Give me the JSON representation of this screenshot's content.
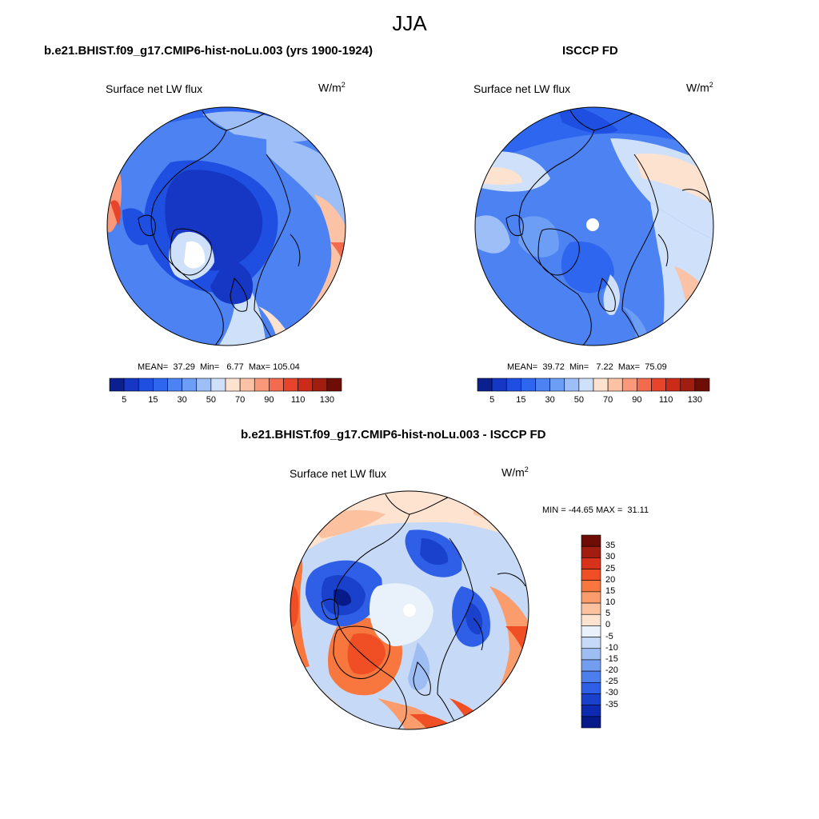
{
  "figure": {
    "title": "JJA"
  },
  "panels": [
    {
      "title": "b.e21.BHIST.f09_g17.CMIP6-hist-noLu.003 (yrs 1900-1924)",
      "variable": "Surface net LW flux",
      "units": "W/m",
      "units_sup": "2",
      "stats": {
        "mean_label": "MEAN=",
        "mean": "37.29",
        "min_label": "Min=",
        "min": "6.77",
        "max_label": "Max=",
        "max": "105.04"
      },
      "colorbar": {
        "colors": [
          "#0b1f8f",
          "#1636c4",
          "#1f4fe0",
          "#2f66f0",
          "#4c82f2",
          "#6d9ef5",
          "#9dbef7",
          "#cfe0fa",
          "#fde2cf",
          "#fcc2a5",
          "#f9997a",
          "#f36b4f",
          "#e8442c",
          "#cc2b19",
          "#a01d10",
          "#6e0d06"
        ],
        "labels": [
          "5",
          "15",
          "30",
          "50",
          "70",
          "90",
          "110",
          "130"
        ]
      }
    },
    {
      "title": "ISCCP FD",
      "variable": "Surface net LW flux",
      "units": "W/m",
      "units_sup": "2",
      "stats": {
        "mean_label": "MEAN=",
        "mean": "39.72",
        "min_label": "Min=",
        "min": "7.22",
        "max_label": "Max=",
        "max": "75.09"
      },
      "colorbar": {
        "colors": [
          "#0b1f8f",
          "#1636c4",
          "#1f4fe0",
          "#2f66f0",
          "#4c82f2",
          "#6d9ef5",
          "#9dbef7",
          "#cfe0fa",
          "#fde2cf",
          "#fcc2a5",
          "#f9997a",
          "#f36b4f",
          "#e8442c",
          "#cc2b19",
          "#a01d10",
          "#6e0d06"
        ],
        "labels": [
          "5",
          "15",
          "30",
          "50",
          "70",
          "90",
          "110",
          "130"
        ]
      }
    },
    {
      "title": "b.e21.BHIST.f09_g17.CMIP6-hist-noLu.003 - ISCCP FD",
      "variable": "Surface net LW flux",
      "units": "W/m",
      "units_sup": "2",
      "stats": {
        "text": "MIN = -44.65 MAX =  31.11"
      },
      "colorbar": {
        "colors": [
          "#6e0d06",
          "#a01d10",
          "#d8321a",
          "#f04f25",
          "#f7773f",
          "#fa9c6c",
          "#fcc2a0",
          "#fde3d0",
          "#e9f1fb",
          "#c6d9f6",
          "#9dbdf3",
          "#739ef0",
          "#4c7fec",
          "#2f5fe6",
          "#1a41cc",
          "#0d2bb0",
          "#061a8a"
        ],
        "labels": [
          "35",
          "30",
          "25",
          "20",
          "15",
          "10",
          "5",
          "0",
          "-5",
          "-10",
          "-15",
          "-20",
          "-25",
          "-30",
          "-35"
        ]
      }
    }
  ]
}
